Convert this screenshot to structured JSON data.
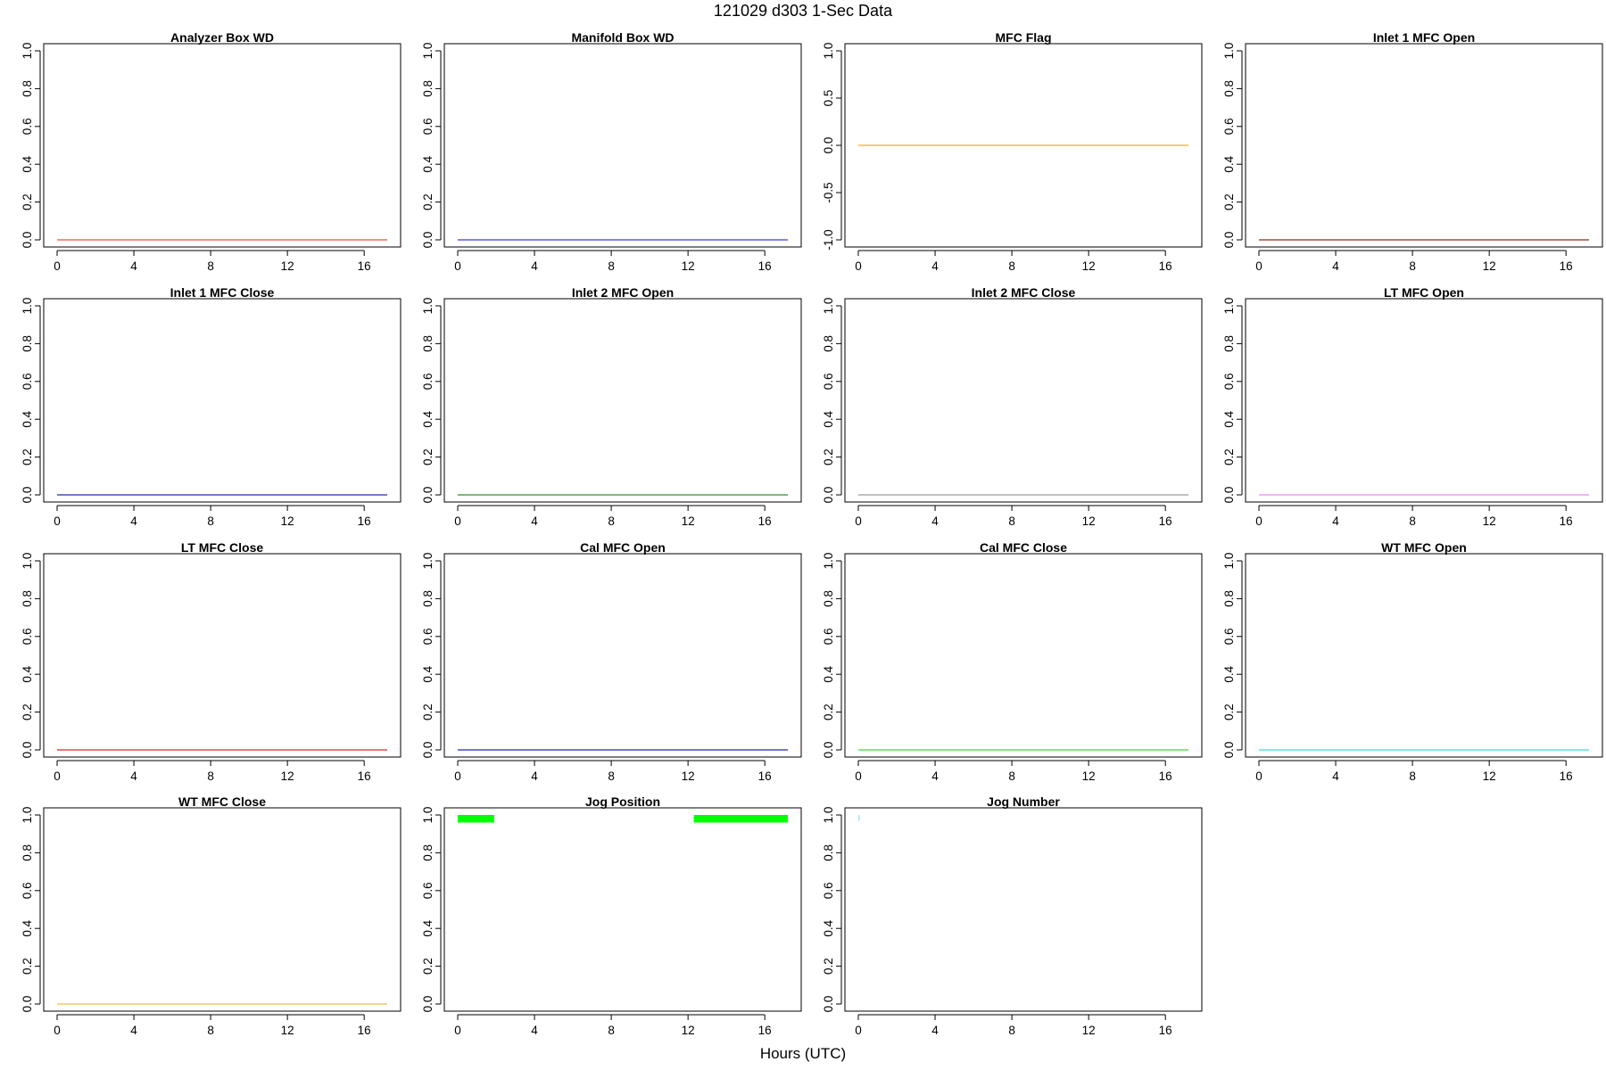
{
  "figure": {
    "title": "121029   d303   1-Sec Data",
    "xlabel": "Hours (UTC)"
  },
  "chart_data": [
    {
      "type": "line",
      "title": "Analyzer Box WD",
      "color": "#e8503a",
      "x": [
        0,
        17.2
      ],
      "y": [
        0,
        0
      ],
      "xlim": [
        0,
        17.2
      ],
      "ylim": [
        0,
        1
      ],
      "xticks": [
        0,
        4,
        8,
        12,
        16
      ],
      "yticks": [
        "0.0",
        "0.2",
        "0.4",
        "0.6",
        "0.8",
        "1.0"
      ]
    },
    {
      "type": "line",
      "title": "Manifold Box WD",
      "color": "#3a3ad8",
      "x": [
        0,
        17.2
      ],
      "y": [
        0,
        0
      ],
      "xlim": [
        0,
        17.2
      ],
      "ylim": [
        0,
        1
      ],
      "xticks": [
        0,
        4,
        8,
        12,
        16
      ],
      "yticks": [
        "0.0",
        "0.2",
        "0.4",
        "0.6",
        "0.8",
        "1.0"
      ]
    },
    {
      "type": "line",
      "title": "MFC Flag",
      "color": "#f5a623",
      "x": [
        0,
        17.2
      ],
      "y": [
        0,
        0
      ],
      "xlim": [
        0,
        17.2
      ],
      "ylim": [
        -1,
        1
      ],
      "xticks": [
        0,
        4,
        8,
        12,
        16
      ],
      "yticks": [
        "-1.0",
        "-0.5",
        "0.0",
        "0.5",
        "1.0"
      ]
    },
    {
      "type": "line",
      "title": "Inlet 1 MFC Open",
      "color": "#8b2a1e",
      "x": [
        0,
        17.2
      ],
      "y": [
        0,
        0
      ],
      "xlim": [
        0,
        17.2
      ],
      "ylim": [
        0,
        1
      ],
      "xticks": [
        0,
        4,
        8,
        12,
        16
      ],
      "yticks": [
        "0.0",
        "0.2",
        "0.4",
        "0.6",
        "0.8",
        "1.0"
      ]
    },
    {
      "type": "line",
      "title": "Inlet 1 MFC Close",
      "color": "#2a2aa8",
      "x": [
        0,
        17.2
      ],
      "y": [
        0,
        0
      ],
      "xlim": [
        0,
        17.2
      ],
      "ylim": [
        0,
        1
      ],
      "xticks": [
        0,
        4,
        8,
        12,
        16
      ],
      "yticks": [
        "0.0",
        "0.2",
        "0.4",
        "0.6",
        "0.8",
        "1.0"
      ]
    },
    {
      "type": "line",
      "title": "Inlet 2 MFC Open",
      "color": "#2e8b2e",
      "x": [
        0,
        17.2
      ],
      "y": [
        0,
        0
      ],
      "xlim": [
        0,
        17.2
      ],
      "ylim": [
        0,
        1
      ],
      "xticks": [
        0,
        4,
        8,
        12,
        16
      ],
      "yticks": [
        "0.0",
        "0.2",
        "0.4",
        "0.6",
        "0.8",
        "1.0"
      ]
    },
    {
      "type": "line",
      "title": "Inlet 2 MFC Close",
      "color": "#9a9a9a",
      "x": [
        0,
        17.2
      ],
      "y": [
        0,
        0
      ],
      "xlim": [
        0,
        17.2
      ],
      "ylim": [
        0,
        1
      ],
      "xticks": [
        0,
        4,
        8,
        12,
        16
      ],
      "yticks": [
        "0.0",
        "0.2",
        "0.4",
        "0.6",
        "0.8",
        "1.0"
      ]
    },
    {
      "type": "line",
      "title": "LT MFC Open",
      "color": "#ee88ee",
      "x": [
        0,
        17.2
      ],
      "y": [
        0,
        0
      ],
      "xlim": [
        0,
        17.2
      ],
      "ylim": [
        0,
        1
      ],
      "xticks": [
        0,
        4,
        8,
        12,
        16
      ],
      "yticks": [
        "0.0",
        "0.2",
        "0.4",
        "0.6",
        "0.8",
        "1.0"
      ]
    },
    {
      "type": "line",
      "title": "LT MFC Close",
      "color": "#e82020",
      "x": [
        0,
        17.2
      ],
      "y": [
        0,
        0
      ],
      "xlim": [
        0,
        17.2
      ],
      "ylim": [
        0,
        1
      ],
      "xticks": [
        0,
        4,
        8,
        12,
        16
      ],
      "yticks": [
        "0.0",
        "0.2",
        "0.4",
        "0.6",
        "0.8",
        "1.0"
      ]
    },
    {
      "type": "line",
      "title": "Cal MFC Open",
      "color": "#2020c0",
      "x": [
        0,
        17.2
      ],
      "y": [
        0,
        0
      ],
      "xlim": [
        0,
        17.2
      ],
      "ylim": [
        0,
        1
      ],
      "xticks": [
        0,
        4,
        8,
        12,
        16
      ],
      "yticks": [
        "0.0",
        "0.2",
        "0.4",
        "0.6",
        "0.8",
        "1.0"
      ]
    },
    {
      "type": "line",
      "title": "Cal MFC Close",
      "color": "#3ad83a",
      "x": [
        0,
        17.2
      ],
      "y": [
        0,
        0
      ],
      "xlim": [
        0,
        17.2
      ],
      "ylim": [
        0,
        1
      ],
      "xticks": [
        0,
        4,
        8,
        12,
        16
      ],
      "yticks": [
        "0.0",
        "0.2",
        "0.4",
        "0.6",
        "0.8",
        "1.0"
      ]
    },
    {
      "type": "line",
      "title": "WT MFC Open",
      "color": "#40d8e0",
      "x": [
        0,
        17.2
      ],
      "y": [
        0,
        0
      ],
      "xlim": [
        0,
        17.2
      ],
      "ylim": [
        0,
        1
      ],
      "xticks": [
        0,
        4,
        8,
        12,
        16
      ],
      "yticks": [
        "0.0",
        "0.2",
        "0.4",
        "0.6",
        "0.8",
        "1.0"
      ]
    },
    {
      "type": "line",
      "title": "WT MFC Close",
      "color": "#f5b84a",
      "x": [
        0,
        17.2
      ],
      "y": [
        0,
        0
      ],
      "xlim": [
        0,
        17.2
      ],
      "ylim": [
        0,
        1
      ],
      "xticks": [
        0,
        4,
        8,
        12,
        16
      ],
      "yticks": [
        "0.0",
        "0.2",
        "0.4",
        "0.6",
        "0.8",
        "1.0"
      ]
    },
    {
      "type": "line",
      "title": "Jog Position",
      "color": "#00ff00",
      "segments": [
        {
          "x": [
            0,
            1.9
          ],
          "ymin": 0.96,
          "ymax": 1.0
        },
        {
          "x": [
            12.3,
            17.2
          ],
          "ymin": 0.96,
          "ymax": 1.0
        }
      ],
      "xlim": [
        0,
        17.2
      ],
      "ylim": [
        0,
        1
      ],
      "xticks": [
        0,
        4,
        8,
        12,
        16
      ],
      "yticks": [
        "0.0",
        "0.2",
        "0.4",
        "0.6",
        "0.8",
        "1.0"
      ]
    },
    {
      "type": "line",
      "title": "Jog Number",
      "color": "#9ae8f0",
      "segments": [
        {
          "x": [
            0,
            0.05
          ],
          "ymin": 0.97,
          "ymax": 1.0
        }
      ],
      "xlim": [
        0,
        17.2
      ],
      "ylim": [
        0,
        1
      ],
      "xticks": [
        0,
        4,
        8,
        12,
        16
      ],
      "yticks": [
        "0.0",
        "0.2",
        "0.4",
        "0.6",
        "0.8",
        "1.0"
      ]
    }
  ]
}
